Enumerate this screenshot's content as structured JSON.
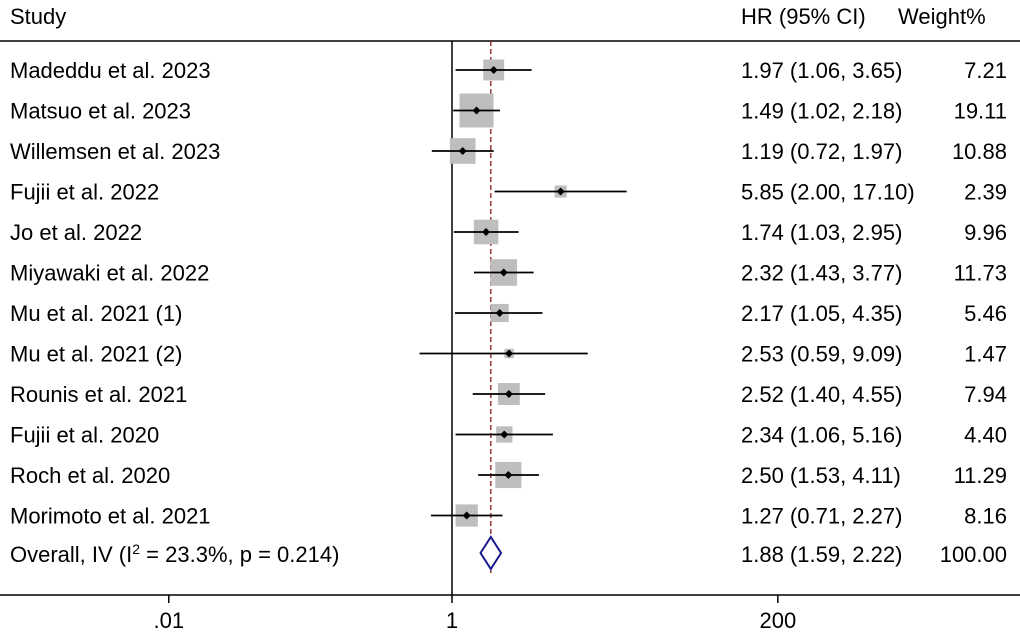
{
  "chart_data": {
    "type": "forest",
    "headers": {
      "study": "Study",
      "effect": "HR (95% CI)",
      "weight": "Weight%"
    },
    "null_value": 1,
    "pooled_estimate": 1.88,
    "x_scale": "log",
    "x_ticks": [
      {
        "value": 0.01,
        "label": ".01"
      },
      {
        "value": 1,
        "label": "1"
      },
      {
        "value": 200,
        "label": "200"
      }
    ],
    "studies": [
      {
        "label": "Madeddu et al. 2023",
        "hr": 1.97,
        "lo": 1.06,
        "hi": 3.65,
        "ci_text": "1.97 (1.06, 3.65)",
        "weight": 7.21,
        "weight_text": "7.21"
      },
      {
        "label": "Matsuo et al. 2023",
        "hr": 1.49,
        "lo": 1.02,
        "hi": 2.18,
        "ci_text": "1.49 (1.02, 2.18)",
        "weight": 19.11,
        "weight_text": "19.11"
      },
      {
        "label": "Willemsen et al. 2023",
        "hr": 1.19,
        "lo": 0.72,
        "hi": 1.97,
        "ci_text": "1.19 (0.72, 1.97)",
        "weight": 10.88,
        "weight_text": "10.88"
      },
      {
        "label": "Fujii et al. 2022",
        "hr": 5.85,
        "lo": 2.0,
        "hi": 17.1,
        "ci_text": "5.85 (2.00, 17.10)",
        "weight": 2.39,
        "weight_text": "2.39"
      },
      {
        "label": "Jo et al. 2022",
        "hr": 1.74,
        "lo": 1.03,
        "hi": 2.95,
        "ci_text": "1.74 (1.03, 2.95)",
        "weight": 9.96,
        "weight_text": "9.96"
      },
      {
        "label": "Miyawaki et al. 2022",
        "hr": 2.32,
        "lo": 1.43,
        "hi": 3.77,
        "ci_text": "2.32 (1.43, 3.77)",
        "weight": 11.73,
        "weight_text": "11.73"
      },
      {
        "label": "Mu et al. 2021 (1)",
        "hr": 2.17,
        "lo": 1.05,
        "hi": 4.35,
        "ci_text": "2.17 (1.05, 4.35)",
        "weight": 5.46,
        "weight_text": "5.46"
      },
      {
        "label": "Mu et al. 2021 (2)",
        "hr": 2.53,
        "lo": 0.59,
        "hi": 9.09,
        "ci_text": "2.53 (0.59, 9.09)",
        "weight": 1.47,
        "weight_text": "1.47"
      },
      {
        "label": "Rounis et al. 2021",
        "hr": 2.52,
        "lo": 1.4,
        "hi": 4.55,
        "ci_text": "2.52 (1.40, 4.55)",
        "weight": 7.94,
        "weight_text": "7.94"
      },
      {
        "label": "Fujii et al. 2020",
        "hr": 2.34,
        "lo": 1.06,
        "hi": 5.16,
        "ci_text": "2.34 (1.06, 5.16)",
        "weight": 4.4,
        "weight_text": "4.40"
      },
      {
        "label": "Roch et al. 2020",
        "hr": 2.5,
        "lo": 1.53,
        "hi": 4.11,
        "ci_text": "2.50 (1.53, 4.11)",
        "weight": 11.29,
        "weight_text": "11.29"
      },
      {
        "label": "Morimoto et al. 2021",
        "hr": 1.27,
        "lo": 0.71,
        "hi": 2.27,
        "ci_text": "1.27 (0.71, 2.27)",
        "weight": 8.16,
        "weight_text": "8.16"
      }
    ],
    "overall": {
      "label_prefix": "Overall, IV (I",
      "label_sup": "2",
      "label_suffix": " = 23.3%, p = 0.214)",
      "hr": 1.88,
      "lo": 1.59,
      "hi": 2.22,
      "ci_text": "1.88 (1.59, 2.22)",
      "weight": 100.0,
      "weight_text": "100.00"
    },
    "colors": {
      "box": "#bebebe",
      "point": "#000000",
      "ci_line": "#000000",
      "null_line": "#000000",
      "pooled_line": "#8b1a1a",
      "diamond": "#1a1a8c"
    },
    "grid": false,
    "legend": "none"
  }
}
